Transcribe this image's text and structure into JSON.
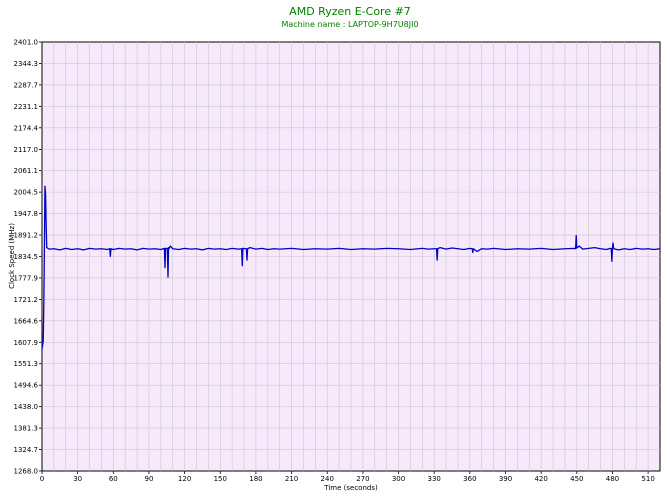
{
  "colors": {
    "background": "#ffffff",
    "plot_background": "#f8e8fc",
    "grid": "#c8c8c8",
    "series": "#0000c0",
    "title": "#008000"
  },
  "chart_data": {
    "type": "line",
    "title": "AMD Ryzen E-Core #7",
    "subtitle": "Machine name : LAPTOP-9H7U8JI0",
    "xlabel": "Time (seconds)",
    "ylabel": "Clock Speed (MHz)",
    "xlim": [
      0,
      520
    ],
    "ylim": [
      1268.0,
      2401.0
    ],
    "grid": true,
    "legend": "none",
    "x_ticks": [
      "0",
      "30",
      "60",
      "90",
      "120",
      "150",
      "180",
      "210",
      "240",
      "270",
      "300",
      "330",
      "360",
      "390",
      "420",
      "450",
      "480",
      "510"
    ],
    "y_ticks": [
      "2401.0",
      "2344.3",
      "2287.7",
      "2231.1",
      "2174.4",
      "2117.0",
      "2061.1",
      "2004.5",
      "1947.8",
      "1891.2",
      "1834.5",
      "1777.9",
      "1721.2",
      "1664.6",
      "1607.9",
      "1551.3",
      "1494.6",
      "1438.0",
      "1381.3",
      "1324.7",
      "1268.0"
    ],
    "series": [
      {
        "values": [
          [
            0,
            1590
          ],
          [
            0.5,
            1600
          ],
          [
            1,
            1610
          ],
          [
            1.5,
            1700
          ],
          [
            2,
            1850
          ],
          [
            2.5,
            2020
          ],
          [
            3,
            2000
          ],
          [
            3.5,
            1920
          ],
          [
            4,
            1858
          ],
          [
            6,
            1854
          ],
          [
            10,
            1855
          ],
          [
            15,
            1852
          ],
          [
            20,
            1856
          ],
          [
            25,
            1853
          ],
          [
            30,
            1855
          ],
          [
            35,
            1852
          ],
          [
            40,
            1856
          ],
          [
            45,
            1854
          ],
          [
            50,
            1855
          ],
          [
            55,
            1853
          ],
          [
            57,
            1855
          ],
          [
            57.5,
            1835
          ],
          [
            58,
            1855
          ],
          [
            60,
            1853
          ],
          [
            65,
            1856
          ],
          [
            70,
            1854
          ],
          [
            75,
            1855
          ],
          [
            80,
            1852
          ],
          [
            85,
            1856
          ],
          [
            90,
            1854
          ],
          [
            95,
            1855
          ],
          [
            100,
            1853
          ],
          [
            103,
            1856
          ],
          [
            103.5,
            1805
          ],
          [
            104,
            1856
          ],
          [
            105.5,
            1856
          ],
          [
            106,
            1780
          ],
          [
            106.5,
            1858
          ],
          [
            107,
            1856
          ],
          [
            108,
            1862
          ],
          [
            110,
            1855
          ],
          [
            115,
            1853
          ],
          [
            120,
            1856
          ],
          [
            125,
            1854
          ],
          [
            130,
            1855
          ],
          [
            135,
            1852
          ],
          [
            140,
            1856
          ],
          [
            145,
            1854
          ],
          [
            150,
            1855
          ],
          [
            155,
            1853
          ],
          [
            160,
            1856
          ],
          [
            165,
            1854
          ],
          [
            168,
            1855
          ],
          [
            168.5,
            1810
          ],
          [
            169,
            1856
          ],
          [
            172,
            1855
          ],
          [
            172.5,
            1825
          ],
          [
            173,
            1855
          ],
          [
            175,
            1858
          ],
          [
            180,
            1854
          ],
          [
            185,
            1856
          ],
          [
            190,
            1853
          ],
          [
            195,
            1855
          ],
          [
            200,
            1854
          ],
          [
            210,
            1856
          ],
          [
            220,
            1853
          ],
          [
            230,
            1855
          ],
          [
            240,
            1854
          ],
          [
            250,
            1856
          ],
          [
            260,
            1853
          ],
          [
            270,
            1855
          ],
          [
            280,
            1854
          ],
          [
            290,
            1856
          ],
          [
            300,
            1855
          ],
          [
            310,
            1853
          ],
          [
            320,
            1856
          ],
          [
            325,
            1854
          ],
          [
            330,
            1855
          ],
          [
            332,
            1855
          ],
          [
            332.5,
            1825
          ],
          [
            333,
            1855
          ],
          [
            335,
            1858
          ],
          [
            340,
            1854
          ],
          [
            345,
            1857
          ],
          [
            350,
            1855
          ],
          [
            355,
            1853
          ],
          [
            360,
            1856
          ],
          [
            362,
            1855
          ],
          [
            362.5,
            1845
          ],
          [
            363,
            1855
          ],
          [
            366,
            1848
          ],
          [
            370,
            1855
          ],
          [
            375,
            1854
          ],
          [
            380,
            1856
          ],
          [
            390,
            1853
          ],
          [
            400,
            1855
          ],
          [
            410,
            1854
          ],
          [
            420,
            1856
          ],
          [
            430,
            1853
          ],
          [
            440,
            1855
          ],
          [
            448,
            1856
          ],
          [
            449,
            1855
          ],
          [
            449.5,
            1890
          ],
          [
            450,
            1857
          ],
          [
            452,
            1862
          ],
          [
            455,
            1854
          ],
          [
            460,
            1856
          ],
          [
            465,
            1858
          ],
          [
            470,
            1855
          ],
          [
            475,
            1853
          ],
          [
            478,
            1856
          ],
          [
            479,
            1855
          ],
          [
            479.5,
            1822
          ],
          [
            480,
            1858
          ],
          [
            480.5,
            1870
          ],
          [
            481,
            1855
          ],
          [
            485,
            1852
          ],
          [
            490,
            1855
          ],
          [
            495,
            1853
          ],
          [
            500,
            1856
          ],
          [
            505,
            1854
          ],
          [
            510,
            1855
          ],
          [
            515,
            1853
          ],
          [
            520,
            1855
          ]
        ]
      }
    ]
  }
}
